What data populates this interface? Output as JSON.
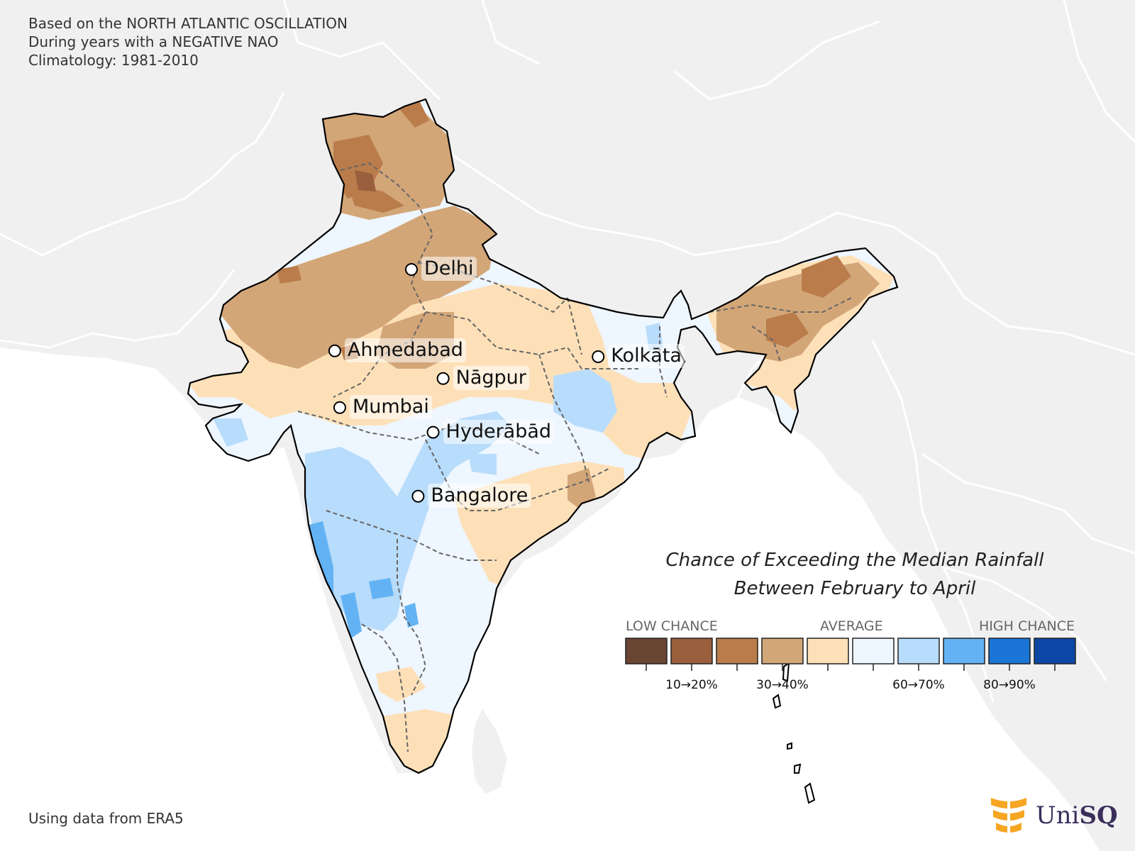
{
  "header": {
    "line1": "Based on the NORTH ATLANTIC OSCILLATION",
    "line2": "During years with a NEGATIVE NAO",
    "line3": "Climatology: 1981-2010"
  },
  "footer": {
    "source": "Using data from ERA5"
  },
  "cities": [
    {
      "name": "Delhi",
      "lon": 77.2,
      "lat": 28.6
    },
    {
      "name": "Ahmedabad",
      "lon": 72.6,
      "lat": 23.0
    },
    {
      "name": "Kolkāta",
      "lon": 88.4,
      "lat": 22.6
    },
    {
      "name": "Nāgpur",
      "lon": 79.1,
      "lat": 21.1
    },
    {
      "name": "Mumbai",
      "lon": 72.9,
      "lat": 19.1
    },
    {
      "name": "Hyderābād",
      "lon": 78.5,
      "lat": 17.4
    },
    {
      "name": "Bangalore",
      "lon": 77.6,
      "lat": 13.0
    }
  ],
  "legend": {
    "title_line1": "Chance of Exceeding the Median Rainfall",
    "title_line2": "Between February to April",
    "low_label": "LOW CHANCE",
    "avg_label": "AVERAGE",
    "high_label": "HIGH CHANCE",
    "colors": [
      "#6b4534",
      "#9a5f3d",
      "#b97c4a",
      "#d3a678",
      "#fde0b8",
      "#eef6ff",
      "#b8dcfb",
      "#63b3f4",
      "#1a75d6",
      "#0d47a6"
    ],
    "tick_labels": [
      "10→20%",
      "30→40%",
      "60→70%",
      "80→90%"
    ]
  },
  "colors": {
    "background_land": "#f0f0f0",
    "ocean": "#ffffff",
    "border": "#ffffff"
  },
  "logo": {
    "text_light": "Uni",
    "text_bold": "SQ",
    "icon": "unisq-flame-icon"
  }
}
